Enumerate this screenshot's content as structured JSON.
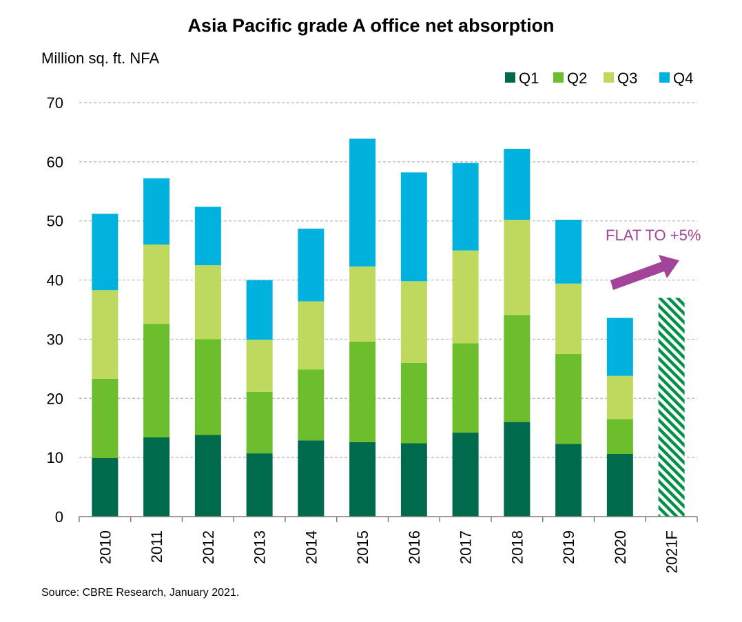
{
  "title": "Asia Pacific grade A office net absorption",
  "y_unit": "Million sq. ft. NFA",
  "source": "Source: CBRE Research, January 2021.",
  "colors": {
    "Q1": "#006A4D",
    "Q2": "#6CBE2C",
    "Q3": "#BED95D",
    "Q4": "#00B2DD",
    "forecast": "#009046",
    "annotation": "#A3449B",
    "grid": "#B5B5B5"
  },
  "chart_data": {
    "type": "bar",
    "stacked": true,
    "categories": [
      "2010",
      "2011",
      "2012",
      "2013",
      "2014",
      "2015",
      "2016",
      "2017",
      "2018",
      "2019",
      "2020",
      "2021F"
    ],
    "series": [
      {
        "name": "Q1",
        "values": [
          9.9,
          13.4,
          13.8,
          10.7,
          12.9,
          12.6,
          12.4,
          14.2,
          16.0,
          12.3,
          10.6,
          null
        ]
      },
      {
        "name": "Q2",
        "values": [
          13.4,
          19.2,
          16.2,
          10.4,
          12.0,
          17.0,
          13.6,
          15.1,
          18.1,
          15.2,
          5.9,
          null
        ]
      },
      {
        "name": "Q3",
        "values": [
          15.0,
          13.4,
          12.5,
          8.8,
          11.5,
          12.7,
          13.8,
          15.7,
          16.1,
          11.9,
          7.3,
          null
        ]
      },
      {
        "name": "Q4",
        "values": [
          12.9,
          11.2,
          9.9,
          10.1,
          12.3,
          21.6,
          18.4,
          14.8,
          12.0,
          10.8,
          9.8,
          null
        ]
      }
    ],
    "forecast": {
      "category": "2021F",
      "value": 37.0,
      "pattern": "diagonal hatch"
    },
    "annotation": "FLAT TO +5%",
    "ylim": [
      0,
      70
    ],
    "yticks": [
      0,
      10,
      20,
      30,
      40,
      50,
      60,
      70
    ],
    "grid": true,
    "legend": "top-right",
    "legend_entries": [
      "Q1",
      "Q2",
      "Q3",
      "Q4"
    ]
  }
}
